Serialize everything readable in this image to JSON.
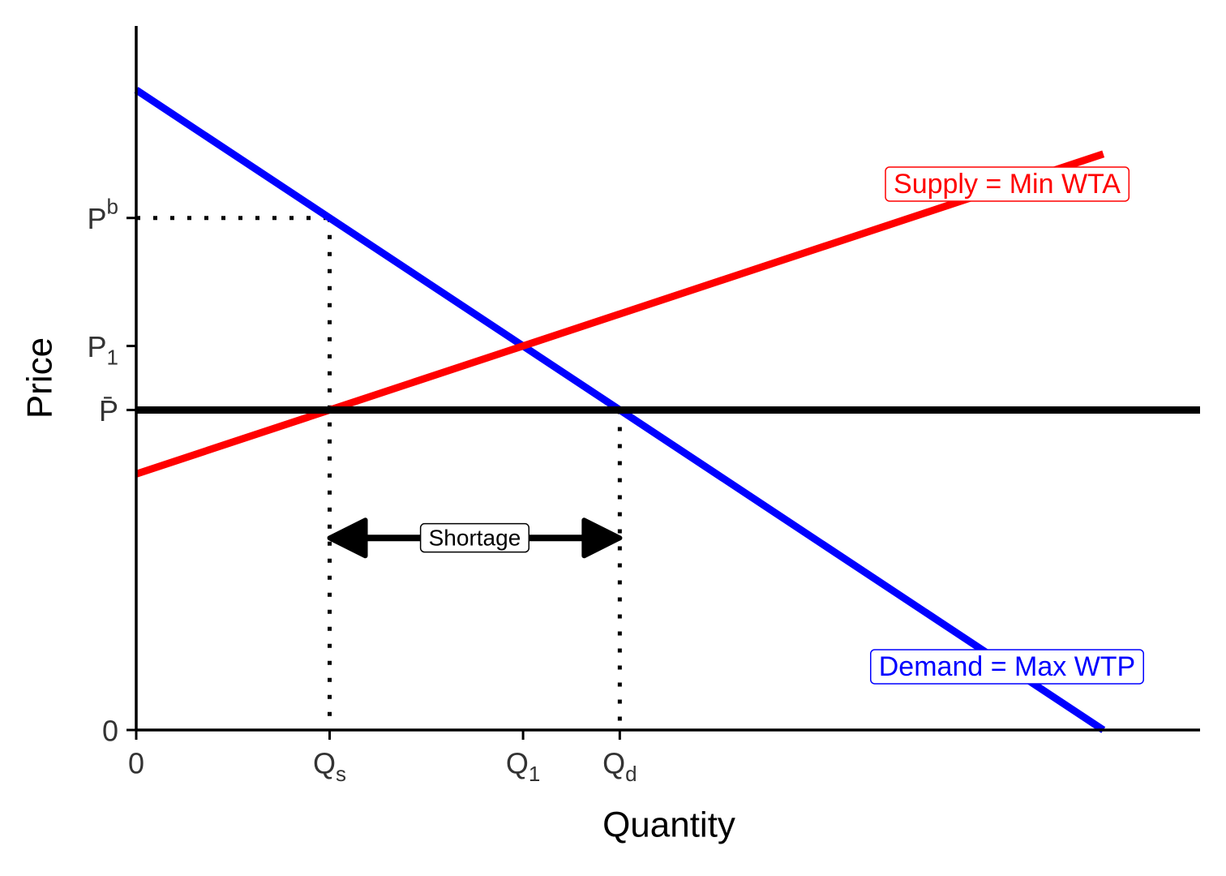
{
  "chart_data": {
    "type": "line",
    "x_label": "Quantity",
    "y_label": "Price",
    "xlim": [
      0,
      11
    ],
    "ylim": [
      0,
      11
    ],
    "xticks": [
      0,
      {
        "value": 2,
        "label": "Qs"
      },
      {
        "value": 4,
        "label": "Q1"
      },
      {
        "value": 5,
        "label": "Qd"
      }
    ],
    "yticks": [
      0,
      {
        "value": 5,
        "label": "P̄"
      },
      {
        "value": 6,
        "label": "P1"
      },
      {
        "value": 8,
        "label": "Pb"
      }
    ],
    "series": [
      {
        "name": "Demand = Max WTP",
        "color": "#0000ff",
        "x": [
          0,
          10
        ],
        "values": [
          10,
          0
        ]
      },
      {
        "name": "Supply = Min WTA",
        "color": "#ff0000",
        "x": [
          0,
          10
        ],
        "values": [
          4,
          9
        ]
      }
    ],
    "price_ceiling": 5,
    "annotations": [
      {
        "text": "Shortage"
      }
    ]
  }
}
